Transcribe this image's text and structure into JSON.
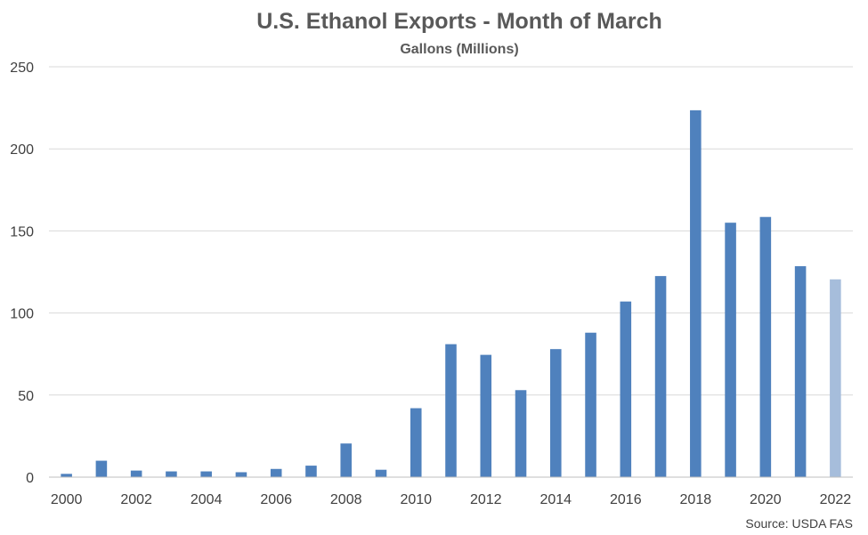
{
  "chart_data": {
    "type": "bar",
    "title": "U.S. Ethanol Exports - Month of March",
    "subtitle": "Gallons (Millions)",
    "xlabel": "",
    "ylabel": "",
    "ylim": [
      0,
      250
    ],
    "yticks": [
      "0",
      "50",
      "100",
      "150",
      "200",
      "250"
    ],
    "grid": true,
    "categories": [
      "2000",
      "2001",
      "2002",
      "2003",
      "2004",
      "2005",
      "2006",
      "2007",
      "2008",
      "2009",
      "2010",
      "2011",
      "2012",
      "2013",
      "2014",
      "2015",
      "2016",
      "2017",
      "2018",
      "2019",
      "2020",
      "2021",
      "2022"
    ],
    "x_tick_labels": [
      "2000",
      "2002",
      "2004",
      "2006",
      "2008",
      "2010",
      "2012",
      "2014",
      "2016",
      "2018",
      "2020",
      "2022"
    ],
    "values": [
      2,
      10,
      4,
      3.5,
      3.5,
      3,
      5,
      7,
      20.5,
      4.5,
      42,
      81,
      74.5,
      53,
      78,
      88,
      107,
      122.5,
      223.5,
      155,
      158.5,
      128.5,
      120.5
    ],
    "colors": {
      "bar": "#4f81bd",
      "highlight_bar": "#a6bddb",
      "highlight_category": "2022"
    },
    "source": "Source: USDA FAS"
  }
}
